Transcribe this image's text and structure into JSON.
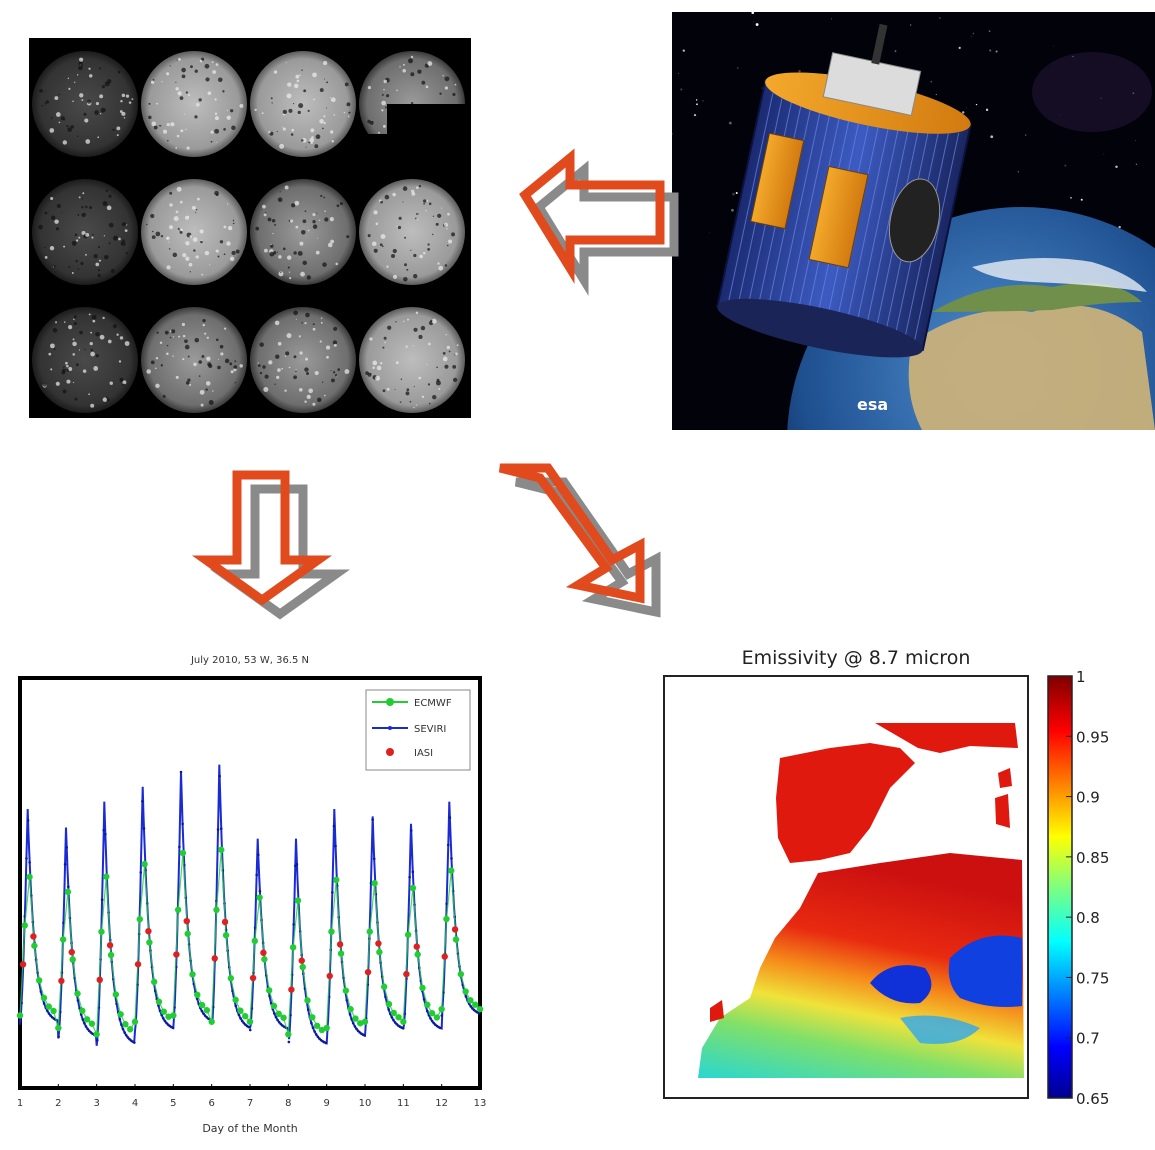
{
  "timeseries": {
    "title": "July 2010, 53 W, 36.5 N",
    "xlabel": "Day of the Month",
    "legend": [
      "ECMWF",
      "SEVIRI",
      "IASI"
    ]
  },
  "emissivity": {
    "title": "Emissivity @ 8.7 micron",
    "colorbar_ticks": [
      "1",
      "0.95",
      "0.9",
      "0.85",
      "0.8",
      "0.75",
      "0.7",
      "0.65"
    ]
  },
  "satellite": {
    "logo": "esa"
  },
  "colors": {
    "arrow": "#e04a1c",
    "arrow_shadow": "#8a8a8a",
    "seviri": "#1a2bd6",
    "ecmwf": "#22cc33",
    "iasi": "#e02020"
  },
  "chart_data": {
    "type": "line",
    "x": [
      1,
      2,
      3,
      4,
      5,
      6,
      7,
      8,
      9,
      10,
      11,
      12,
      13
    ],
    "xlim": [
      1,
      13
    ],
    "series": [
      {
        "name": "ECMWF"
      },
      {
        "name": "SEVIRI"
      },
      {
        "name": "IASI"
      }
    ]
  }
}
